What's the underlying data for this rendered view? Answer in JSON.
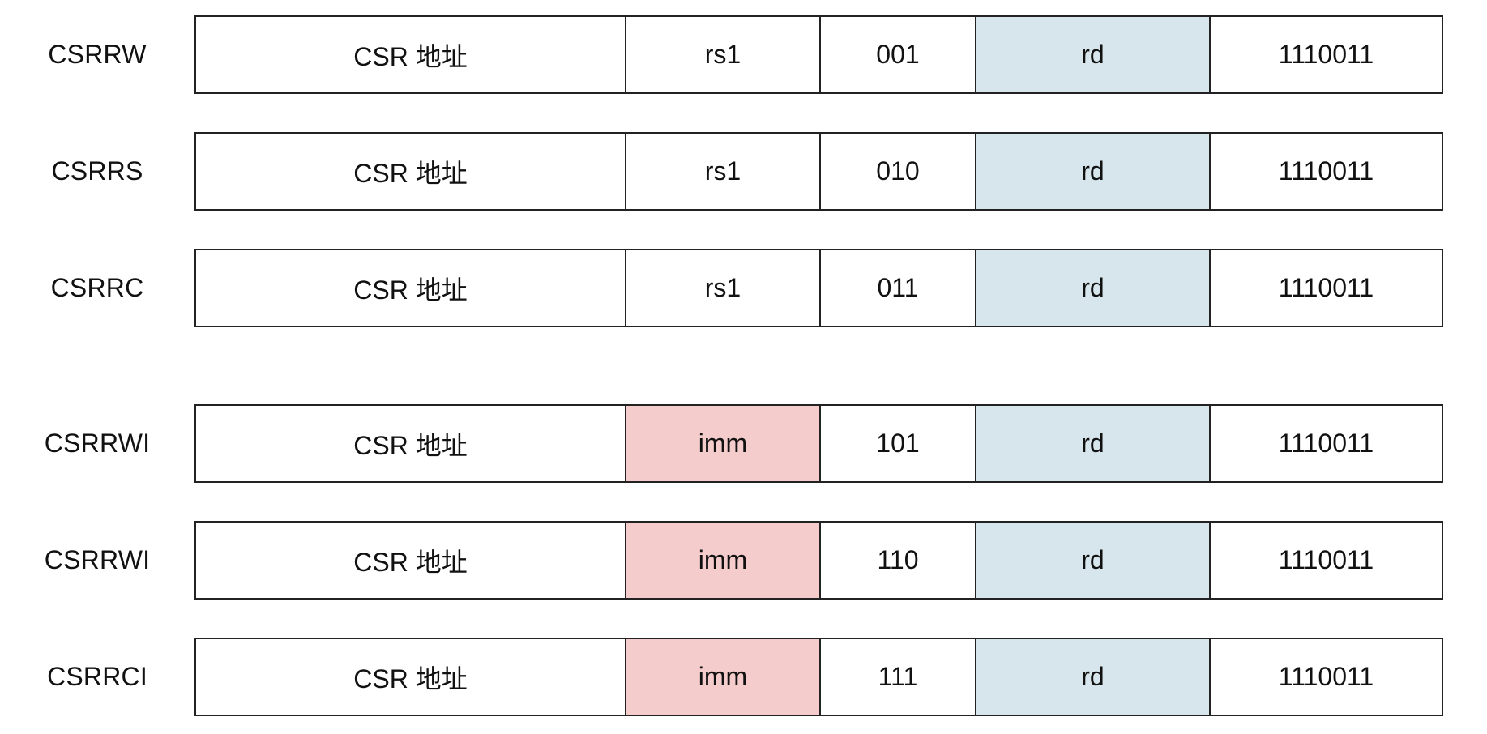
{
  "colors": {
    "rd_fill": "#d6e6ec",
    "imm_fill": "#f4cccb",
    "plain_fill": "#ffffff",
    "border": "#222222"
  },
  "rows": [
    {
      "mnemonic": "CSRRW",
      "csr": "CSR 地址",
      "src": "rs1",
      "src_kind": "register",
      "funct3": "001",
      "rd": "rd",
      "opcode": "1110011"
    },
    {
      "mnemonic": "CSRRS",
      "csr": "CSR 地址",
      "src": "rs1",
      "src_kind": "register",
      "funct3": "010",
      "rd": "rd",
      "opcode": "1110011"
    },
    {
      "mnemonic": "CSRRC",
      "csr": "CSR 地址",
      "src": "rs1",
      "src_kind": "register",
      "funct3": "011",
      "rd": "rd",
      "opcode": "1110011"
    },
    {
      "mnemonic": "CSRRWI",
      "csr": "CSR 地址",
      "src": "imm",
      "src_kind": "immediate",
      "funct3": "101",
      "rd": "rd",
      "opcode": "1110011"
    },
    {
      "mnemonic": "CSRRWI",
      "csr": "CSR 地址",
      "src": "imm",
      "src_kind": "immediate",
      "funct3": "110",
      "rd": "rd",
      "opcode": "1110011"
    },
    {
      "mnemonic": "CSRRCI",
      "csr": "CSR 地址",
      "src": "imm",
      "src_kind": "immediate",
      "funct3": "111",
      "rd": "rd",
      "opcode": "1110011"
    }
  ]
}
